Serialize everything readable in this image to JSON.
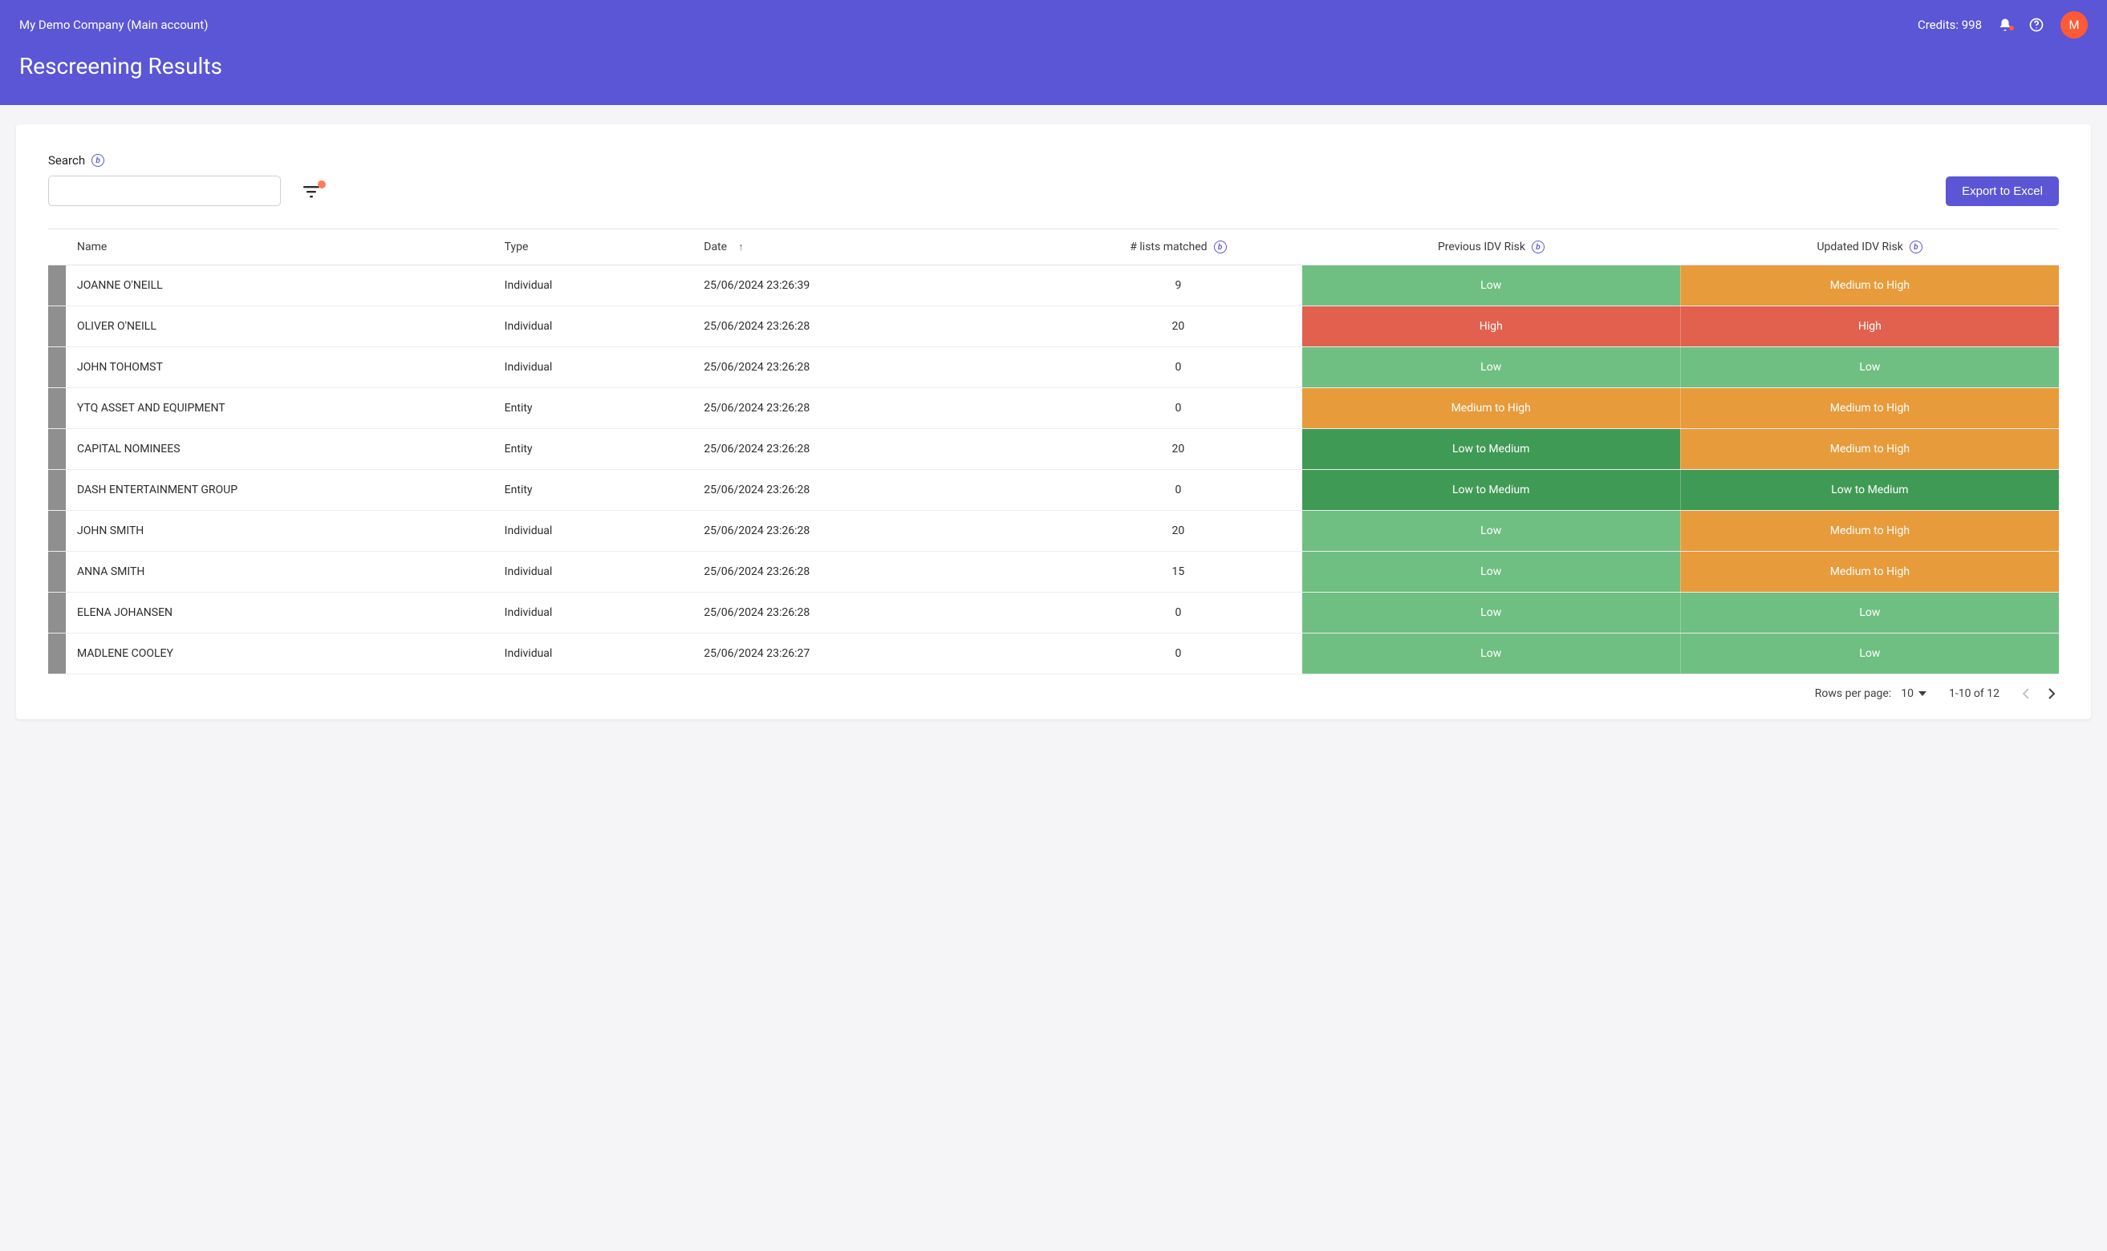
{
  "header": {
    "account_label": "My Demo Company (Main account)",
    "credits_label": "Credits: 998",
    "avatar_initial": "M",
    "page_title": "Rescreening Results"
  },
  "controls": {
    "search_label": "Search",
    "search_value": "",
    "export_label": "Export to Excel"
  },
  "colors": {
    "primary": "#5a56d6",
    "low": "#6fbf82",
    "low_to_medium": "#3f9a55",
    "medium_to_high": "#e89b3a",
    "high": "#e1614e",
    "row_marker": "#8f8f8f",
    "avatar": "#ff5a36"
  },
  "table": {
    "columns": {
      "name": "Name",
      "type": "Type",
      "date": "Date",
      "lists": "# lists matched",
      "prev_risk": "Previous IDV Risk",
      "upd_risk": "Updated IDV Risk"
    },
    "rows": [
      {
        "name": "JOANNE O'NEILL",
        "type": "Individual",
        "date": "25/06/2024 23:26:39",
        "lists": "9",
        "prev": "Low",
        "upd": "Medium to High"
      },
      {
        "name": "OLIVER O'NEILL",
        "type": "Individual",
        "date": "25/06/2024 23:26:28",
        "lists": "20",
        "prev": "High",
        "upd": "High"
      },
      {
        "name": "JOHN TOHOMST",
        "type": "Individual",
        "date": "25/06/2024 23:26:28",
        "lists": "0",
        "prev": "Low",
        "upd": "Low"
      },
      {
        "name": "YTQ ASSET AND EQUIPMENT",
        "type": "Entity",
        "date": "25/06/2024 23:26:28",
        "lists": "0",
        "prev": "Medium to High",
        "upd": "Medium to High"
      },
      {
        "name": "CAPITAL NOMINEES",
        "type": "Entity",
        "date": "25/06/2024 23:26:28",
        "lists": "20",
        "prev": "Low to Medium",
        "upd": "Medium to High"
      },
      {
        "name": "DASH ENTERTAINMENT GROUP",
        "type": "Entity",
        "date": "25/06/2024 23:26:28",
        "lists": "0",
        "prev": "Low to Medium",
        "upd": "Low to Medium"
      },
      {
        "name": "JOHN SMITH",
        "type": "Individual",
        "date": "25/06/2024 23:26:28",
        "lists": "20",
        "prev": "Low",
        "upd": "Medium to High"
      },
      {
        "name": "ANNA SMITH",
        "type": "Individual",
        "date": "25/06/2024 23:26:28",
        "lists": "15",
        "prev": "Low",
        "upd": "Medium to High"
      },
      {
        "name": "ELENA JOHANSEN",
        "type": "Individual",
        "date": "25/06/2024 23:26:28",
        "lists": "0",
        "prev": "Low",
        "upd": "Low"
      },
      {
        "name": "MADLENE COOLEY",
        "type": "Individual",
        "date": "25/06/2024 23:26:27",
        "lists": "0",
        "prev": "Low",
        "upd": "Low"
      }
    ]
  },
  "pager": {
    "rows_label": "Rows per page:",
    "rows_value": "10",
    "range": "1-10 of 12"
  }
}
